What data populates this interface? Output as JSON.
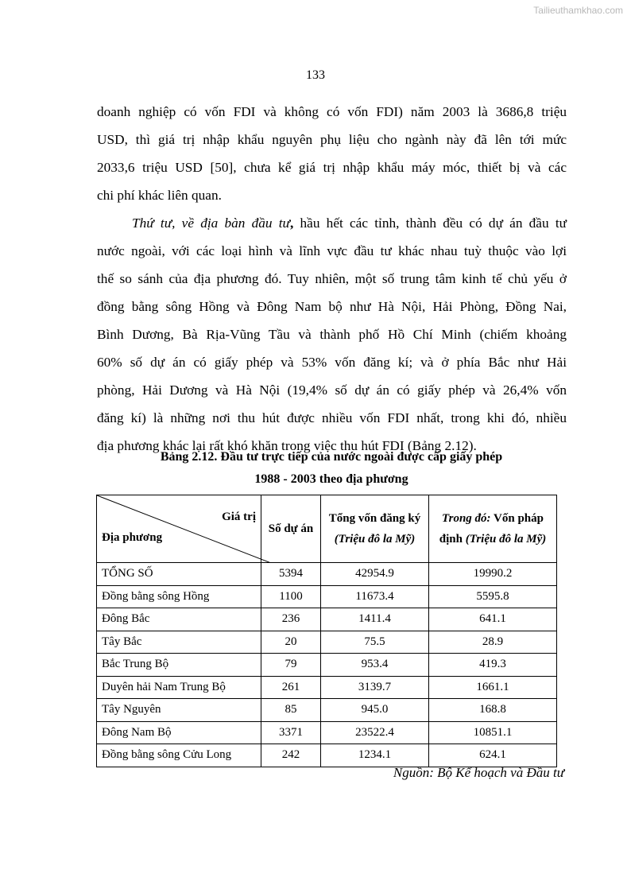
{
  "watermark": "Tailieuthamkhao.com",
  "page_number": "133",
  "paragraph1": [
    "doanh nghiệp có vốn FDI và không có vốn FDI) năm 2003 là 3686,8 triệu",
    "USD, thì giá trị nhập khẩu nguyên phụ liệu cho ngành này đã lên tới mức",
    "2033,6 triệu USD [50], chưa kể giá trị nhập khẩu máy móc, thiết bị và các",
    "chi phí khác liên quan."
  ],
  "paragraph2": {
    "lead_italic": "Thứ tư, về địa bàn đầu tư",
    "lead_bold": ",",
    "first_rest": " hầu hết các tỉnh, thành đều có dự án đầu tư",
    "lines": [
      "nước ngoài, với các loại hình và lĩnh vực đầu tư khác nhau tuỳ thuộc vào lợi",
      "thế so sánh của địa phương đó. Tuy nhiên, một số trung tâm kinh tế chủ yếu ở",
      "đồng bằng sông Hồng và Đông Nam bộ như Hà Nội, Hải Phòng, Đồng Nai,",
      "Bình Dương, Bà Rịa-Vũng Tầu và thành phố Hồ Chí Minh (chiếm khoảng",
      "60% số dự án có giấy phép và 53% vốn đăng kí; và ở phía Bắc như Hải",
      "phòng, Hải Dương và Hà Nội (19,4% số dự án có giấy phép và 26,4% vốn",
      "đăng kí) là những nơi thu hút được nhiều vốn FDI nhất, trong khi đó, nhiều",
      "địa phương khác lại rất khó khăn trong việc thu hút FDI (Bảng 2.12)."
    ]
  },
  "table": {
    "caption_line1": "Bảng 2.12.  Đầu tư trực tiếp của nước ngoài được cấp giấy phép",
    "caption_line2": "1988 - 2003 theo địa phương",
    "header": {
      "diag_top": "Giá trị",
      "diag_bottom": "Địa phương",
      "col2": "Số dự án",
      "col3_main": "Tổng vốn đăng ký",
      "col3_unit": "(Triệu đô la Mỹ)",
      "col4_italic": "Trong đó:",
      "col4_main": " Vốn pháp định",
      "col4_unit": "(Triệu đô la Mỹ)"
    },
    "rows": [
      [
        "TỔNG SỐ",
        "5394",
        "42954.9",
        "19990.2"
      ],
      [
        "Đồng bằng sông Hồng",
        "1100",
        "11673.4",
        "5595.8"
      ],
      [
        "Đông Bắc",
        "236",
        "1411.4",
        "641.1"
      ],
      [
        "Tây Bắc",
        "20",
        "75.5",
        "28.9"
      ],
      [
        "Bắc Trung Bộ",
        "79",
        "953.4",
        "419.3"
      ],
      [
        "Duyên hải Nam Trung Bộ",
        "261",
        "3139.7",
        "1661.1"
      ],
      [
        "Tây Nguyên",
        "85",
        "945.0",
        "168.8"
      ],
      [
        "Đông Nam Bộ",
        "3371",
        "23522.4",
        "10851.1"
      ],
      [
        "Đồng bằng sông Cửu Long",
        "242",
        "1234.1",
        "624.1"
      ]
    ],
    "source": "Nguồn: Bộ Kế hoạch và Đầu tư"
  }
}
